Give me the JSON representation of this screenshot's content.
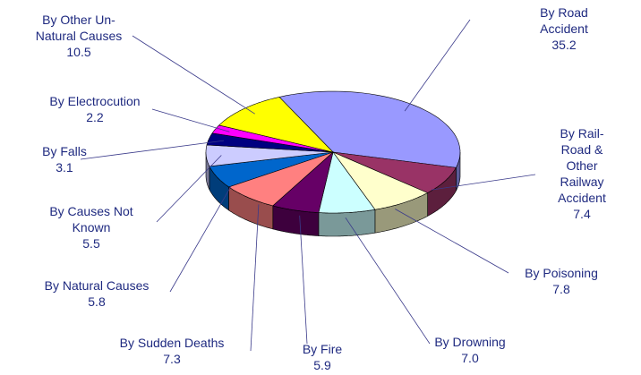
{
  "chart_data": {
    "type": "pie",
    "categories": [
      "By Road Accident",
      "By Rail-Road &\nOther Railway\nAccident",
      "By Poisoning",
      "By Drowning",
      "By Fire",
      "By Sudden Deaths",
      "By Natural Causes",
      "By Causes Not\nKnown",
      "By Falls",
      "By Electrocution",
      "By Other Un-\nNatural Causes"
    ],
    "values": [
      35.2,
      7.4,
      7.8,
      7.0,
      5.9,
      7.3,
      5.8,
      5.5,
      3.1,
      2.2,
      10.5
    ],
    "value_labels": [
      "35.2",
      "7.4",
      "7.8",
      "7.0",
      "5.9",
      "7.3",
      "5.8",
      "5.5",
      "3.1",
      "2.2",
      "10.5"
    ],
    "colors": [
      "#9999ff",
      "#993366",
      "#ffffcc",
      "#ccffff",
      "#660066",
      "#ff8080",
      "#0066cc",
      "#ccccff",
      "#000080",
      "#ff00ff",
      "#ffff00"
    ]
  }
}
